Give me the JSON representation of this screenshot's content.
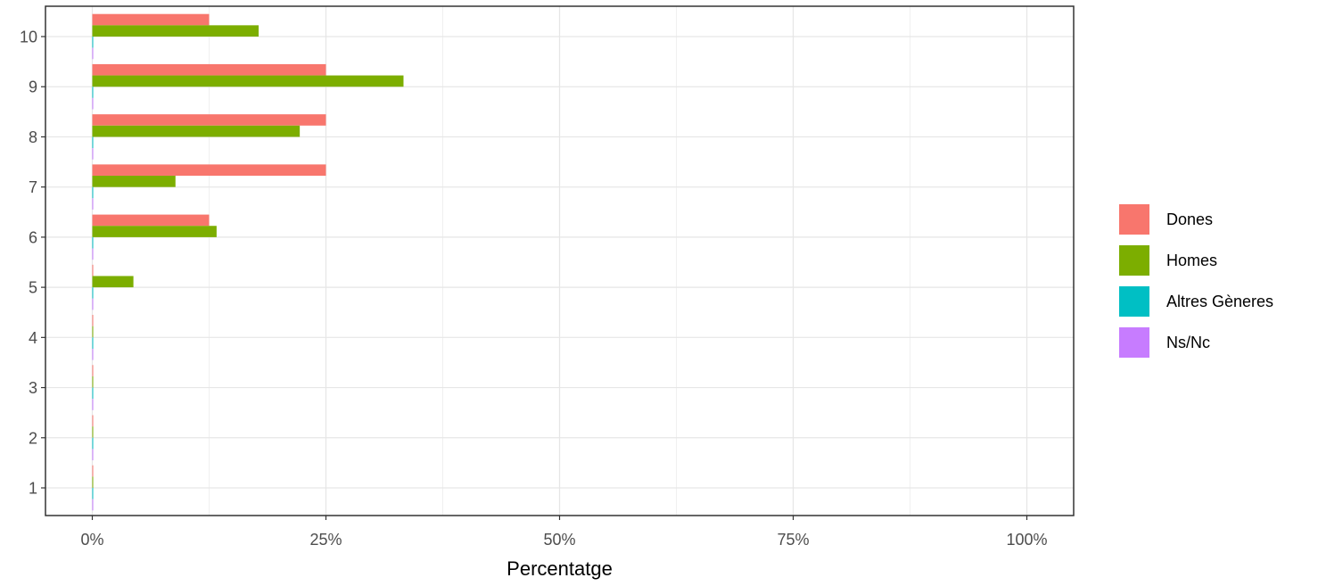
{
  "chart_data": {
    "type": "bar",
    "orientation": "horizontal",
    "xlabel": "Percentatge",
    "ylabel": "",
    "xlim": [
      0,
      100
    ],
    "x_ticks": [
      0,
      25,
      50,
      75,
      100
    ],
    "x_tick_labels": [
      "0%",
      "25%",
      "50%",
      "75%",
      "100%"
    ],
    "categories": [
      "1",
      "2",
      "3",
      "4",
      "5",
      "6",
      "7",
      "8",
      "9",
      "10"
    ],
    "series": [
      {
        "name": "Dones",
        "color": "#F8766D",
        "values": [
          0,
          0,
          0,
          0,
          0,
          12.5,
          25,
          25,
          25,
          12.5
        ]
      },
      {
        "name": "Homes",
        "color": "#7CAE00",
        "values": [
          0,
          0,
          0,
          0,
          4.4,
          13.3,
          8.9,
          22.2,
          33.3,
          17.8
        ]
      },
      {
        "name": "Altres Gèneres",
        "color": "#00BFC4",
        "values": [
          0,
          0,
          0,
          0,
          0,
          0,
          0,
          0,
          0,
          0
        ]
      },
      {
        "name": "Ns/Nc",
        "color": "#C77CFF",
        "values": [
          0,
          0,
          0,
          0,
          0,
          0,
          0,
          0,
          0,
          0
        ]
      }
    ],
    "grid": true,
    "legend_position": "right"
  }
}
